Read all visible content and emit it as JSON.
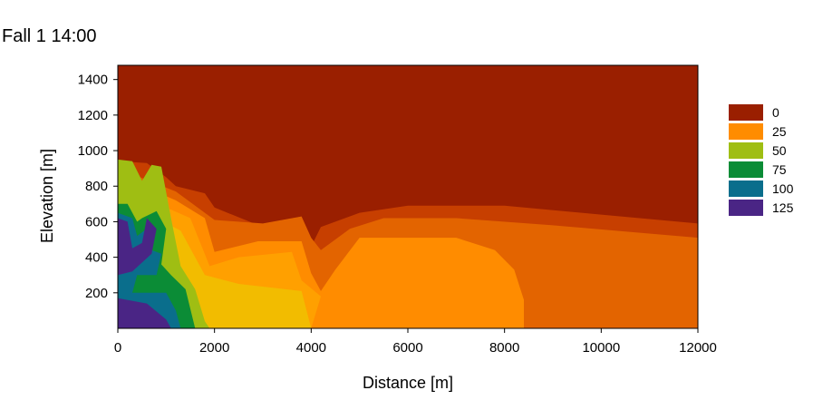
{
  "chart_data": {
    "type": "heatmap",
    "title": "Fall 1 14:00",
    "xlabel": "Distance [m]",
    "ylabel": "Elevation [m]",
    "xlim": [
      0,
      12000
    ],
    "ylim": [
      0,
      1480
    ],
    "x_ticks": [
      0,
      2000,
      4000,
      6000,
      8000,
      10000,
      12000
    ],
    "y_ticks": [
      200,
      400,
      600,
      800,
      1000,
      1200,
      1400
    ],
    "grid": false,
    "legend_position": "right",
    "legend": [
      {
        "label": "0",
        "color": "#9a1f00"
      },
      {
        "label": "25",
        "color": "#ff8c00"
      },
      {
        "label": "50",
        "color": "#9fbe13"
      },
      {
        "label": "75",
        "color": "#0b8c36"
      },
      {
        "label": "100",
        "color": "#0a6e8c"
      },
      {
        "label": "125",
        "color": "#4a2585"
      }
    ],
    "regions": [
      {
        "level": "0-25 (light)",
        "color": "#c73f00",
        "points": [
          [
            0,
            940
          ],
          [
            600,
            930
          ],
          [
            1000,
            850
          ],
          [
            1200,
            800
          ],
          [
            1800,
            760
          ],
          [
            2000,
            680
          ],
          [
            4000,
            460
          ],
          [
            4200,
            570
          ],
          [
            5000,
            650
          ],
          [
            6000,
            690
          ],
          [
            8000,
            690
          ],
          [
            10000,
            640
          ],
          [
            12000,
            590
          ],
          [
            12000,
            0
          ],
          [
            0,
            0
          ]
        ]
      },
      {
        "level": "0-25 (mid)",
        "color": "#e36400",
        "points": [
          [
            0,
            900
          ],
          [
            1200,
            770
          ],
          [
            2000,
            610
          ],
          [
            3000,
            590
          ],
          [
            3800,
            630
          ],
          [
            4000,
            510
          ],
          [
            4200,
            440
          ],
          [
            4800,
            560
          ],
          [
            5500,
            620
          ],
          [
            7000,
            620
          ],
          [
            9000,
            580
          ],
          [
            12000,
            510
          ],
          [
            12000,
            0
          ],
          [
            0,
            0
          ]
        ]
      },
      {
        "level": "25-50 (outer)",
        "color": "#ff8c00",
        "points": [
          [
            0,
            860
          ],
          [
            1200,
            720
          ],
          [
            1800,
            620
          ],
          [
            2000,
            430
          ],
          [
            2900,
            490
          ],
          [
            3800,
            490
          ],
          [
            4000,
            310
          ],
          [
            4200,
            210
          ],
          [
            4500,
            330
          ],
          [
            5000,
            510
          ],
          [
            7000,
            510
          ],
          [
            7800,
            440
          ],
          [
            8200,
            330
          ],
          [
            8400,
            160
          ],
          [
            8400,
            0
          ],
          [
            0,
            0
          ]
        ]
      },
      {
        "level": "25-50 (inner)",
        "color": "#ffa000",
        "points": [
          [
            0,
            800
          ],
          [
            1500,
            620
          ],
          [
            1900,
            350
          ],
          [
            2500,
            400
          ],
          [
            3600,
            430
          ],
          [
            3800,
            270
          ],
          [
            4200,
            180
          ],
          [
            4000,
            0
          ],
          [
            0,
            0
          ]
        ]
      },
      {
        "level": "25-50 (yellow)",
        "color": "#f2bc00",
        "points": [
          [
            0,
            730
          ],
          [
            1300,
            550
          ],
          [
            1800,
            300
          ],
          [
            2500,
            250
          ],
          [
            3800,
            210
          ],
          [
            4000,
            0
          ],
          [
            0,
            0
          ]
        ]
      },
      {
        "level": "50-75",
        "color": "#9fbe13",
        "points": [
          [
            0,
            950
          ],
          [
            300,
            940
          ],
          [
            500,
            830
          ],
          [
            700,
            920
          ],
          [
            900,
            910
          ],
          [
            1100,
            620
          ],
          [
            1300,
            350
          ],
          [
            1600,
            220
          ],
          [
            1800,
            40
          ],
          [
            1900,
            0
          ],
          [
            0,
            0
          ]
        ]
      },
      {
        "level": "75-100",
        "color": "#0b8c36",
        "points": [
          [
            0,
            700
          ],
          [
            200,
            700
          ],
          [
            400,
            600
          ],
          [
            500,
            620
          ],
          [
            800,
            660
          ],
          [
            1000,
            560
          ],
          [
            900,
            360
          ],
          [
            1100,
            300
          ],
          [
            1400,
            220
          ],
          [
            1600,
            0
          ],
          [
            0,
            0
          ]
        ]
      },
      {
        "level": "100-125",
        "color": "#0a6e8c",
        "points": [
          [
            0,
            650
          ],
          [
            300,
            620
          ],
          [
            400,
            520
          ],
          [
            600,
            560
          ],
          [
            700,
            440
          ],
          [
            900,
            420
          ],
          [
            800,
            300
          ],
          [
            400,
            300
          ],
          [
            300,
            200
          ],
          [
            1000,
            200
          ],
          [
            1200,
            100
          ],
          [
            1300,
            0
          ],
          [
            0,
            0
          ]
        ]
      },
      {
        "level": "125+",
        "color": "#4a2585",
        "points": [
          [
            0,
            620
          ],
          [
            200,
            600
          ],
          [
            300,
            450
          ],
          [
            500,
            480
          ],
          [
            600,
            620
          ],
          [
            800,
            560
          ],
          [
            700,
            420
          ],
          [
            300,
            320
          ],
          [
            0,
            300
          ]
        ]
      },
      {
        "level": "125+ (bottom)",
        "color": "#4a2585",
        "points": [
          [
            0,
            170
          ],
          [
            600,
            140
          ],
          [
            1000,
            50
          ],
          [
            1100,
            0
          ],
          [
            0,
            0
          ]
        ]
      }
    ]
  }
}
